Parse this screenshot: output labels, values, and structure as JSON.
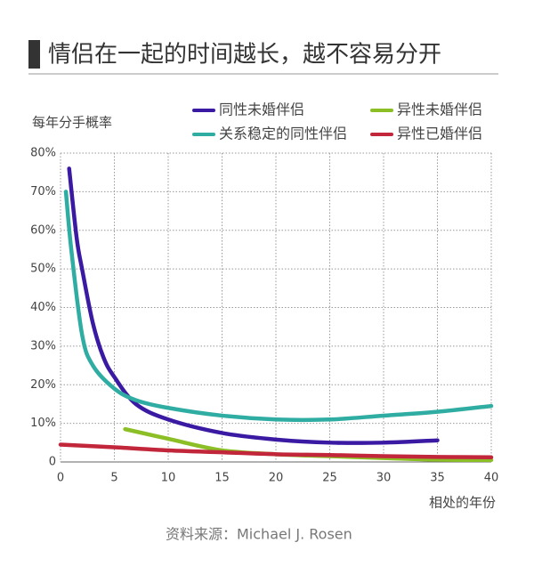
{
  "chart_data": {
    "type": "line",
    "title": "情侣在一起的时间越长，越不容易分开",
    "y_label": "每年分手概率",
    "x_label": "相处的年份",
    "source": "资料来源：Michael J. Rosen",
    "xlim": [
      0,
      40
    ],
    "xticks": [
      0,
      5,
      10,
      15,
      20,
      25,
      30,
      35,
      40
    ],
    "ylim": [
      0,
      80
    ],
    "yticks": [
      {
        "value": 0,
        "label": "0"
      },
      {
        "value": 10,
        "label": "10%"
      },
      {
        "value": 20,
        "label": "20%"
      },
      {
        "value": 30,
        "label": "30%"
      },
      {
        "value": 40,
        "label": "40%"
      },
      {
        "value": 50,
        "label": "50%"
      },
      {
        "value": 60,
        "label": "60%"
      },
      {
        "value": 70,
        "label": "70%"
      },
      {
        "value": 80,
        "label": "80%"
      }
    ],
    "grid": true,
    "series": [
      {
        "name": "同性未婚伴侣",
        "color": "#3b1aa3",
        "x": [
          0.8,
          1.5,
          2,
          3,
          4,
          5,
          7,
          10,
          15,
          20,
          25,
          30,
          35
        ],
        "values": [
          76,
          58,
          50,
          36,
          27,
          22,
          15,
          11,
          7.5,
          5.8,
          5,
          5,
          5.6
        ]
      },
      {
        "name": "异性未婚伴侣",
        "color": "#8cbf26",
        "x": [
          6,
          10,
          15,
          20,
          25,
          30,
          35,
          40
        ],
        "values": [
          8.5,
          6,
          3,
          2,
          1.5,
          1,
          0.6,
          0.5
        ]
      },
      {
        "name": "关系稳定的同性伴侣",
        "color": "#2fada3",
        "x": [
          0.5,
          1,
          2,
          3,
          5,
          7,
          10,
          15,
          20,
          25,
          30,
          35,
          40
        ],
        "values": [
          70,
          55,
          33,
          25,
          19,
          16,
          14,
          12,
          11,
          11,
          12,
          13,
          14.5
        ]
      },
      {
        "name": "异性已婚伴侣",
        "color": "#c2263a",
        "x": [
          0,
          5,
          10,
          15,
          20,
          25,
          30,
          35,
          40
        ],
        "values": [
          4.5,
          3.8,
          3,
          2.5,
          2,
          1.8,
          1.5,
          1.3,
          1.2
        ]
      }
    ]
  }
}
